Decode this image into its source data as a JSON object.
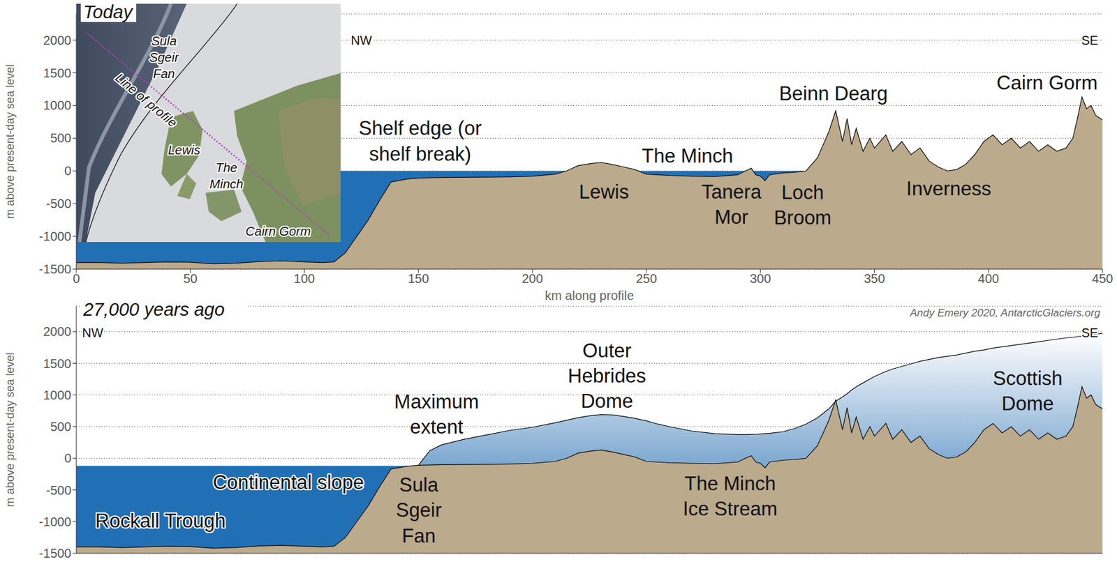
{
  "chart_data": [
    {
      "type": "area",
      "title": "Today",
      "x_label": "km along profile",
      "y_label": "m above present-day sea level",
      "x": [
        0,
        10,
        20,
        30,
        40,
        50,
        60,
        70,
        80,
        90,
        100,
        108,
        113,
        118,
        123,
        128,
        133,
        138,
        145,
        150,
        155,
        160,
        170,
        180,
        190,
        200,
        210,
        215,
        220,
        225,
        230,
        235,
        240,
        245,
        250,
        255,
        260,
        270,
        280,
        290,
        294,
        296,
        298,
        300,
        302,
        304,
        310,
        315,
        320,
        325,
        330,
        333,
        336,
        338,
        340,
        342,
        345,
        348,
        350,
        355,
        358,
        362,
        366,
        370,
        374,
        378,
        382,
        386,
        390,
        394,
        398,
        402,
        406,
        410,
        414,
        418,
        422,
        426,
        430,
        434,
        437,
        439,
        441,
        443,
        445,
        447,
        450
      ],
      "series": [
        {
          "type": "area",
          "color": "#2170b5",
          "line_style": "none",
          "values": [
            0,
            0,
            0,
            0,
            0,
            0,
            0,
            0,
            0,
            0,
            0,
            0,
            0,
            0,
            0,
            0,
            0,
            0,
            0,
            0,
            0,
            0,
            0,
            0,
            0,
            0,
            0,
            0,
            0,
            0,
            0,
            0,
            0,
            0,
            0,
            0,
            0,
            0,
            0,
            0,
            0,
            0,
            0,
            0,
            0,
            0,
            0,
            0,
            0,
            null,
            null,
            null,
            null,
            null,
            null,
            null,
            null,
            null,
            null,
            null,
            null,
            null,
            null,
            null,
            null,
            null,
            null,
            null,
            null,
            null,
            null,
            null,
            null,
            null,
            null,
            null,
            null,
            null,
            null,
            null,
            null,
            null,
            null,
            null,
            null,
            null,
            null
          ]
        },
        {
          "type": "area",
          "color": "#bcaa8c",
          "line_style": "solid",
          "values": [
            -1400,
            -1400,
            -1410,
            -1400,
            -1390,
            -1395,
            -1420,
            -1410,
            -1385,
            -1375,
            -1390,
            -1400,
            -1390,
            -1250,
            -1000,
            -750,
            -450,
            -170,
            -125,
            -110,
            -105,
            -100,
            -98,
            -95,
            -90,
            -80,
            -50,
            0,
            80,
            110,
            130,
            100,
            60,
            20,
            -50,
            -60,
            -70,
            -80,
            -85,
            -60,
            10,
            40,
            -60,
            -80,
            -150,
            -60,
            -30,
            -20,
            0,
            200,
            600,
            920,
            450,
            800,
            400,
            650,
            300,
            500,
            350,
            550,
            300,
            450,
            250,
            350,
            150,
            60,
            0,
            20,
            100,
            250,
            450,
            550,
            400,
            500,
            350,
            450,
            300,
            400,
            300,
            350,
            500,
            800,
            1130,
            950,
            1000,
            850,
            780
          ]
        }
      ],
      "xlim": [
        0,
        450
      ],
      "xticks": [
        0,
        50,
        100,
        150,
        200,
        250,
        300,
        350,
        400,
        450
      ],
      "ylim": [
        -1500,
        2400
      ],
      "yticks": [
        -1500,
        -1000,
        -500,
        0,
        500,
        1000,
        1500,
        2000
      ],
      "grid": true,
      "annotations": [
        "NW",
        "SE",
        "Shelf edge (or shelf break)",
        "Lewis",
        "The Minch",
        "Tanera Mor",
        "Loch Broom",
        "Beinn Dearg",
        "Inverness",
        "Cairn Gorm"
      ],
      "inset": {
        "labels": [
          "Sula Sgeir Fan",
          "Line of profile",
          "Lewis",
          "The Minch",
          "Cairn Gorm"
        ]
      }
    },
    {
      "type": "area",
      "title": "27,000 years ago",
      "y_label": "m above present-day sea level",
      "x": [
        0,
        10,
        20,
        30,
        40,
        50,
        60,
        70,
        80,
        90,
        100,
        108,
        113,
        118,
        123,
        128,
        133,
        138,
        145,
        150,
        155,
        160,
        170,
        180,
        190,
        200,
        210,
        215,
        220,
        225,
        230,
        235,
        240,
        245,
        250,
        255,
        260,
        270,
        280,
        290,
        294,
        296,
        298,
        300,
        302,
        304,
        310,
        315,
        320,
        325,
        330,
        333,
        336,
        338,
        340,
        342,
        345,
        348,
        350,
        355,
        358,
        362,
        366,
        370,
        374,
        378,
        382,
        386,
        390,
        394,
        398,
        402,
        406,
        410,
        414,
        418,
        422,
        426,
        430,
        434,
        437,
        439,
        441,
        443,
        445,
        447,
        450
      ],
      "series": [
        {
          "type": "area",
          "color": "#2170b5",
          "line_style": "none",
          "values": [
            -120,
            -120,
            -120,
            -120,
            -120,
            -120,
            -120,
            -120,
            -120,
            -120,
            -120,
            -120,
            -120,
            -120,
            -120,
            -120,
            -120,
            -120,
            -120,
            null,
            null,
            null,
            null,
            null,
            null,
            null,
            null,
            null,
            null,
            null,
            null,
            null,
            null,
            null,
            null,
            null,
            null,
            null,
            null,
            null,
            null,
            null,
            null,
            null,
            null,
            null,
            null,
            null,
            null,
            null,
            null,
            null,
            null,
            null,
            null,
            null,
            null,
            null,
            null,
            null,
            null,
            null,
            null,
            null,
            null,
            null,
            null,
            null,
            null,
            null,
            null,
            null,
            null,
            null,
            null,
            null,
            null,
            null,
            null,
            null,
            null,
            null,
            null,
            null,
            null,
            null,
            null
          ]
        },
        {
          "type": "gradient",
          "color": "#7ba7d0",
          "line_style": "solid",
          "values": [
            null,
            null,
            null,
            null,
            null,
            null,
            null,
            null,
            null,
            null,
            null,
            null,
            null,
            null,
            null,
            null,
            null,
            null,
            null,
            -110,
            120,
            210,
            300,
            370,
            440,
            490,
            560,
            600,
            640,
            670,
            690,
            685,
            660,
            630,
            590,
            540,
            500,
            430,
            390,
            375,
            375,
            376,
            378,
            385,
            390,
            395,
            420,
            470,
            540,
            640,
            780,
            900,
            970,
            1020,
            1080,
            1130,
            1190,
            1250,
            1290,
            1370,
            1410,
            1450,
            1490,
            1530,
            1560,
            1590,
            1610,
            1630,
            1660,
            1690,
            1710,
            1740,
            1760,
            1780,
            1800,
            1820,
            1840,
            1860,
            1880,
            1900,
            1910,
            1920,
            1930,
            1940,
            1950,
            1960,
            1970
          ]
        },
        {
          "type": "area",
          "color": "#bcaa8c",
          "line_style": "solid",
          "values": [
            -1400,
            -1400,
            -1410,
            -1400,
            -1390,
            -1395,
            -1420,
            -1410,
            -1385,
            -1375,
            -1390,
            -1400,
            -1390,
            -1250,
            -1000,
            -750,
            -450,
            -170,
            -125,
            -110,
            -105,
            -100,
            -98,
            -95,
            -90,
            -80,
            -50,
            0,
            80,
            110,
            130,
            100,
            60,
            20,
            -50,
            -60,
            -70,
            -80,
            -85,
            -60,
            10,
            40,
            -60,
            -80,
            -150,
            -60,
            -30,
            -20,
            0,
            200,
            600,
            920,
            450,
            800,
            400,
            650,
            300,
            500,
            350,
            550,
            300,
            450,
            250,
            350,
            150,
            60,
            0,
            20,
            100,
            250,
            450,
            550,
            400,
            500,
            350,
            450,
            300,
            400,
            300,
            350,
            500,
            800,
            1130,
            950,
            1000,
            850,
            780
          ]
        }
      ],
      "xlim": [
        0,
        450
      ],
      "xticks": [
        0,
        50,
        100,
        150,
        200,
        250,
        300,
        350,
        400,
        450
      ],
      "ylim": [
        -1500,
        2400
      ],
      "yticks": [
        -1500,
        -1000,
        -500,
        0,
        500,
        1000,
        1500,
        2000
      ],
      "grid": true,
      "tick_labels": "y",
      "annotations": [
        "NW",
        "SE",
        "Maximum extent",
        "Outer Hebrides Dome",
        "Scottish Dome",
        "Continental slope",
        "Sula Sgeir Fan",
        "Rockall Trough",
        "The Minch Ice Stream",
        "Andy Emery 2020, AntarcticGlaciers.org"
      ]
    }
  ]
}
